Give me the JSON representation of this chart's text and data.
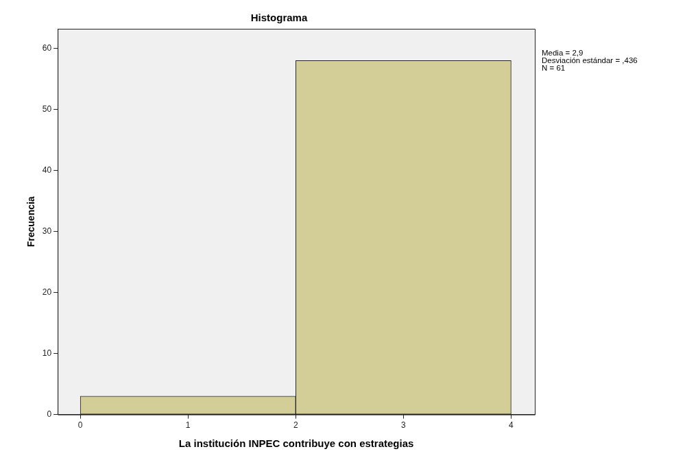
{
  "chart_data": {
    "type": "histogram",
    "title": "Histograma",
    "xlabel": "La institución INPEC contribuye con estrategias",
    "ylabel": "Frecuencia",
    "bins": [
      0,
      2,
      4
    ],
    "values": [
      3,
      58
    ],
    "color": "#d3cd97",
    "xlim": [
      -0.21,
      4.22
    ],
    "xticks": [
      0,
      1,
      2,
      3,
      4
    ],
    "ylim": [
      0,
      63.2
    ],
    "yticks": [
      0,
      10,
      20,
      30,
      40,
      50,
      60
    ],
    "grid": false,
    "annotations": [
      "Media = 2,9",
      "Desviación estándar = ,436",
      "N = 61"
    ]
  }
}
